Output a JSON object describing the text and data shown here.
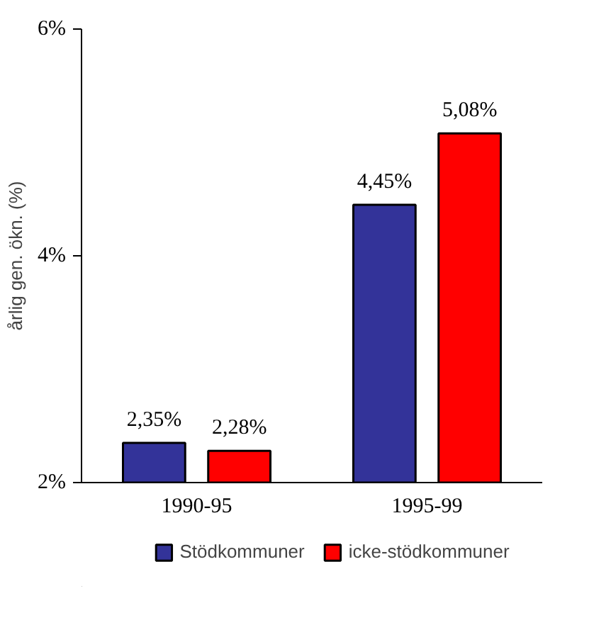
{
  "chart_data": {
    "type": "bar",
    "ylabel": "årlig gen. ökn. (%)",
    "categories": [
      "1990-95",
      "1995-99"
    ],
    "series": [
      {
        "name": "Stödkommuner",
        "color": "#333399",
        "values": [
          2.35,
          4.45
        ],
        "value_labels": [
          "2,35%",
          "4,45%"
        ]
      },
      {
        "name": "icke-stödkommuner",
        "color": "#ff0000",
        "values": [
          2.28,
          5.08
        ],
        "value_labels": [
          "2,28%",
          "5,08%"
        ]
      }
    ],
    "ylim": [
      2,
      6
    ],
    "yticks": [
      {
        "value": 2,
        "label": "2%"
      },
      {
        "value": 4,
        "label": "4%"
      },
      {
        "value": 6,
        "label": "6%"
      }
    ],
    "grid": false,
    "legend": "bottom"
  }
}
